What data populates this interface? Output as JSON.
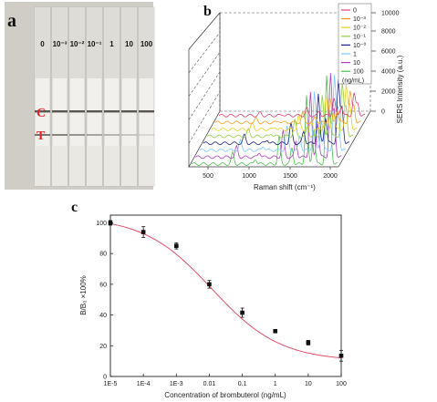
{
  "panel_a": {
    "label": "a",
    "strip_labels": [
      "0",
      "10⁻³",
      "10⁻²",
      "10⁻¹",
      "1",
      "10",
      "100"
    ],
    "line_labels": {
      "control": "C",
      "test": "T"
    },
    "label_color": "#e8242a"
  },
  "panel_b": {
    "label": "b",
    "xlabel": "Raman shift (cm⁻¹)",
    "xticks": [
      "500",
      "1000",
      "1500",
      "2000"
    ],
    "ylabel": "SERS Intensity (a.u.)",
    "zticks": [
      "0",
      "2000",
      "4000",
      "6000",
      "8000",
      "10000"
    ],
    "legend": [
      "0",
      "10⁻³",
      "10⁻²",
      "10⁻¹",
      "10⁻⁰",
      "1",
      "10",
      "100",
      "(ng/mL)"
    ],
    "legend_colors": [
      "#e0407a",
      "#f0a020",
      "#e8d020",
      "#90d040",
      "#202080",
      "#80c8ff",
      "#b040c0",
      "#50c050"
    ]
  },
  "panel_c": {
    "label": "c",
    "xlabel": "Concentration of brombuterol (ng/mL)",
    "ylabel": "B/B₀ ×100%",
    "xticks": [
      "1E-5",
      "1E-4",
      "1E-3",
      "0.01",
      "0.1",
      "1",
      "10",
      "100"
    ],
    "yticks": [
      "0",
      "20",
      "40",
      "60",
      "80",
      "100"
    ]
  },
  "chart_data": {
    "type": "scatter",
    "xlabel": "Concentration of brombuterol (ng/mL)",
    "ylabel": "B/B₀ ×100%",
    "x_scale": "log",
    "xlim": [
      1e-05,
      100
    ],
    "ylim": [
      0,
      105
    ],
    "x": [
      1e-05,
      0.0001,
      0.001,
      0.01,
      0.1,
      1,
      10,
      100
    ],
    "y": [
      100,
      94,
      85,
      60,
      41.5,
      29.5,
      22,
      13.5
    ],
    "errors": [
      1.5,
      3.5,
      2,
      2.5,
      3,
      1,
      1.5,
      3.5
    ],
    "fit_color": "#e0506a",
    "marker_color": "#111111"
  }
}
